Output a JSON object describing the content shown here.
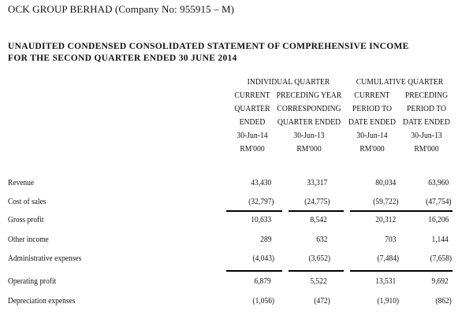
{
  "company_line": "OCK GROUP BERHAD (Company No: 955915 – M)",
  "statement_title": {
    "line1": "UNAUDITED CONDENSED CONSOLIDATED STATEMENT OF COMPREHENSIVE INCOME",
    "line2": "FOR THE SECOND QUARTER ENDED 30 JUNE 2014"
  },
  "groups": {
    "individual": "INDIVIDUAL QUARTER",
    "cumulative": "CUMULATIVE QUARTER"
  },
  "columns": [
    {
      "lines": [
        "CURRENT",
        "QUARTER",
        "ENDED",
        "30-Jun-14",
        "RM'000"
      ]
    },
    {
      "lines": [
        "PRECEDING YEAR",
        "CORRESPONDING",
        "QUARTER ENDED",
        "30-Jun-13",
        "RM'000"
      ]
    },
    {
      "lines": [
        "CURRENT",
        "PERIOD TO",
        "DATE ENDED",
        "30-Jun-14",
        "RM'000"
      ]
    },
    {
      "lines": [
        "PRECEDING",
        "PERIOD TO",
        "DATE ENDED",
        "30-Jun-13",
        "RM'000"
      ]
    }
  ],
  "rows": [
    {
      "label": "Revenue",
      "values": [
        "43,430",
        "33,317",
        "80,034",
        "63,960"
      ]
    },
    {
      "label": "Cost of sales",
      "values": [
        "(32,797)",
        "(24,775)",
        "(59,722)",
        "(47,754)"
      ]
    },
    {
      "label": "Gross profit",
      "values": [
        "10,633",
        "8,542",
        "20,312",
        "16,206"
      ]
    },
    {
      "label": "Other income",
      "values": [
        "289",
        "632",
        "703",
        "1,144"
      ]
    },
    {
      "label": "Administrative expenses",
      "values": [
        "(4,043)",
        "(3,652)",
        "(7,484)",
        "(7,658)"
      ]
    },
    {
      "label": "Operating profit",
      "values": [
        "6,879",
        "5,522",
        "13,531",
        "9,692"
      ]
    },
    {
      "label": "Depreciation expenses",
      "values": [
        "(1,056)",
        "(472)",
        "(1,910)",
        "(862)"
      ]
    }
  ]
}
